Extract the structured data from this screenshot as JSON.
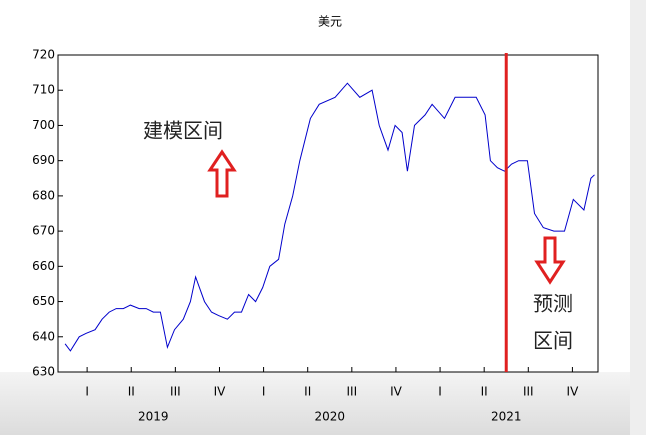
{
  "chart_data": {
    "type": "line",
    "title": "美元",
    "x": [
      2019.0,
      2019.03,
      2019.08,
      2019.12,
      2019.17,
      2019.21,
      2019.25,
      2019.29,
      2019.33,
      2019.37,
      2019.42,
      2019.46,
      2019.5,
      2019.54,
      2019.58,
      2019.62,
      2019.67,
      2019.71,
      2019.74,
      2019.79,
      2019.83,
      2019.87,
      2019.92,
      2019.96,
      2020.0,
      2020.04,
      2020.08,
      2020.12,
      2020.16,
      2020.21,
      2020.245,
      2020.29,
      2020.33,
      2020.39,
      2020.44,
      2020.53,
      2020.6,
      2020.67,
      2020.74,
      2020.78,
      2020.83,
      2020.87,
      2020.91,
      2020.94,
      2020.98,
      2021.04,
      2021.08,
      2021.15,
      2021.21,
      2021.29,
      2021.33,
      2021.38,
      2021.41,
      2021.45,
      2021.49,
      2021.53,
      2021.57,
      2021.62,
      2021.66,
      2021.71,
      2021.77,
      2021.83,
      2021.88,
      2021.94,
      2021.98,
      2022.0
    ],
    "series": [
      {
        "name": "美元",
        "color": "#0000cc",
        "values": [
          638,
          636,
          640,
          641,
          642,
          645,
          647,
          648,
          648,
          649,
          648,
          648,
          647,
          647,
          637,
          642,
          645,
          650,
          657,
          650,
          647,
          646,
          645,
          647,
          647,
          652,
          650,
          654,
          660,
          662,
          672,
          680,
          690,
          702,
          706,
          708,
          712,
          708,
          710,
          700,
          693,
          700,
          698,
          687,
          700,
          703,
          706,
          702,
          708,
          708,
          708,
          703,
          690,
          688,
          687,
          689,
          690,
          690,
          675,
          671,
          670,
          670,
          679,
          676,
          685,
          686
        ]
      }
    ],
    "xlim": [
      2018.96,
      2022.02
    ],
    "ylim": [
      630,
      720
    ],
    "yticks": [
      630,
      640,
      650,
      660,
      670,
      680,
      690,
      700,
      710,
      720
    ],
    "xticks": [
      {
        "value": 2019.125,
        "label": "I"
      },
      {
        "value": 2019.375,
        "label": "II"
      },
      {
        "value": 2019.625,
        "label": "III"
      },
      {
        "value": 2019.875,
        "label": "IV"
      },
      {
        "value": 2020.125,
        "label": "I"
      },
      {
        "value": 2020.375,
        "label": "II"
      },
      {
        "value": 2020.625,
        "label": "III"
      },
      {
        "value": 2020.875,
        "label": "IV"
      },
      {
        "value": 2021.125,
        "label": "I"
      },
      {
        "value": 2021.375,
        "label": "II"
      },
      {
        "value": 2021.625,
        "label": "III"
      },
      {
        "value": 2021.875,
        "label": "IV"
      }
    ],
    "year_labels": [
      {
        "value": 2019.5,
        "label": "2019"
      },
      {
        "value": 2020.5,
        "label": "2020"
      },
      {
        "value": 2021.5,
        "label": "2021"
      }
    ],
    "split_x": 2021.5,
    "split_color": "#e02020",
    "annotations": [
      "建模区间",
      "预测",
      "区间"
    ]
  }
}
